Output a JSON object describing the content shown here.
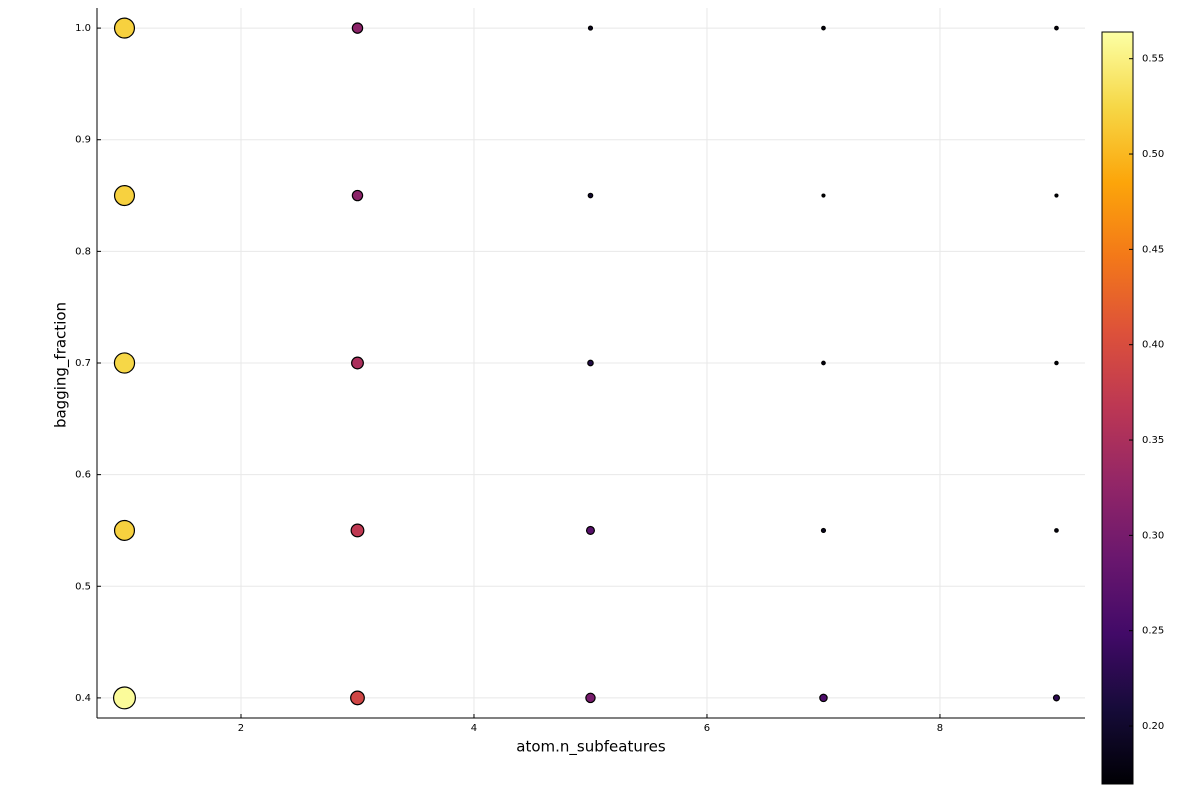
{
  "chart_data": {
    "type": "scatter",
    "xlabel": "atom.n_subfeatures",
    "ylabel": "bagging_fraction",
    "x": [
      1,
      1,
      1,
      1,
      1,
      3,
      3,
      3,
      3,
      3,
      5,
      5,
      5,
      5,
      5,
      7,
      7,
      7,
      7,
      7,
      9,
      9,
      9,
      9,
      9
    ],
    "y": [
      1.0,
      0.85,
      0.7,
      0.55,
      0.4,
      1.0,
      0.85,
      0.7,
      0.55,
      0.4,
      1.0,
      0.85,
      0.7,
      0.55,
      0.4,
      1.0,
      0.85,
      0.7,
      0.55,
      0.4,
      1.0,
      0.85,
      0.7,
      0.55,
      0.4
    ],
    "color_values": [
      0.52,
      0.52,
      0.525,
      0.52,
      0.56,
      0.32,
      0.32,
      0.35,
      0.37,
      0.39,
      0.19,
      0.2,
      0.22,
      0.27,
      0.3,
      0.18,
      0.17,
      0.18,
      0.19,
      0.26,
      0.18,
      0.17,
      0.175,
      0.18,
      0.23
    ],
    "colormap": "inferno",
    "marker_edge_color": "#000000",
    "xlim": [
      0.764,
      9.245
    ],
    "ylim": [
      0.382,
      1.018
    ],
    "clim": [
      0.1696,
      0.564
    ],
    "xticks": [
      2,
      4,
      6,
      8
    ],
    "yticks": [
      {
        "value": 0.4,
        "label": "0.4"
      },
      {
        "value": 0.5,
        "label": "0.5"
      },
      {
        "value": 0.6,
        "label": "0.6"
      },
      {
        "value": 0.7,
        "label": "0.7"
      },
      {
        "value": 0.8,
        "label": "0.8"
      },
      {
        "value": 0.9,
        "label": "0.9"
      },
      {
        "value": 1.0,
        "label": "1.0"
      }
    ],
    "cticks": [
      {
        "value": 0.2,
        "label": "0.20"
      },
      {
        "value": 0.25,
        "label": "0.25"
      },
      {
        "value": 0.3,
        "label": "0.30"
      },
      {
        "value": 0.35,
        "label": "0.35"
      },
      {
        "value": 0.4,
        "label": "0.40"
      },
      {
        "value": 0.45,
        "label": "0.45"
      },
      {
        "value": 0.5,
        "label": "0.50"
      },
      {
        "value": 0.55,
        "label": "0.55"
      }
    ],
    "grid": true
  }
}
